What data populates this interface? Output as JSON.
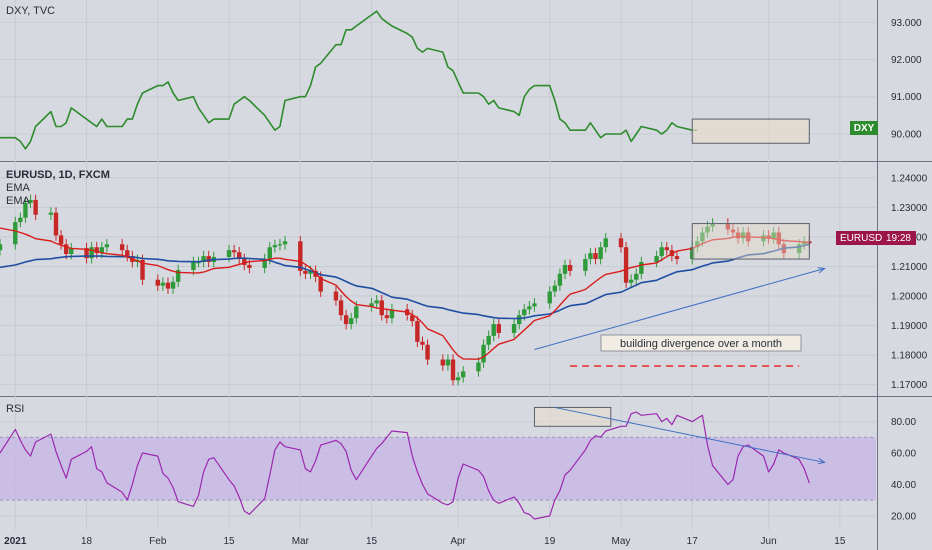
{
  "colors": {
    "background": "#d6d9df",
    "divider": "#6f7480",
    "dxy_line": "#2e8b2e",
    "candle_up": "#2f9a3a",
    "candle_down": "#c62828",
    "ema_fast": "#d91d1d",
    "ema_slow": "#1f4fa3",
    "rsi_line": "#9c27b0",
    "rsi_band": "#c7b4e6",
    "annotation_line": "#3f6fc4",
    "dashed_line": "#e53935",
    "box_fill": "#e6dccd"
  },
  "panels": {
    "dxy": {
      "title": "DXY, TVC",
      "badge": "DXY"
    },
    "eurusd": {
      "title": "EURUSD, 1D, FXCM",
      "ema_label_1": "EMA",
      "ema_label_2": "EMA",
      "badge_symbol": "EURUSD",
      "badge_time": "19:28",
      "annotation": "building divergence over a month"
    },
    "rsi": {
      "title": "RSI"
    }
  },
  "chart_data": [
    {
      "type": "line",
      "title": "DXY, TVC",
      "ylim": [
        89.3,
        93.6
      ],
      "yticks": [
        "93.000",
        "92.000",
        "91.000",
        "90.000"
      ],
      "ytick_values": [
        93.0,
        92.0,
        91.0,
        90.0
      ],
      "x_start": "2021-01-01",
      "series": [
        {
          "name": "DXY",
          "values": [
            89.9,
            89.9,
            89.8,
            89.6,
            89.8,
            90.2,
            90.6,
            90.2,
            90.2,
            90.3,
            90.7,
            90.4,
            90.3,
            90.2,
            90.4,
            90.2,
            90.2,
            90.4,
            90.4,
            90.8,
            91.1,
            91.3,
            91.3,
            91.4,
            91.1,
            90.9,
            91.0,
            90.7,
            90.5,
            90.3,
            90.4,
            90.4,
            90.8,
            90.9,
            91.0,
            90.9,
            90.5,
            90.3,
            90.1,
            90.2,
            90.9,
            91.0,
            91.0,
            91.3,
            91.8,
            91.9,
            92.4,
            92.4,
            92.8,
            92.8,
            92.9,
            93.2,
            93.3,
            93.1,
            93.0,
            92.9,
            92.7,
            92.6,
            92.3,
            92.2,
            92.3,
            92.2,
            91.8,
            91.7,
            91.4,
            91.1,
            91.1,
            91.0,
            90.8,
            90.9,
            90.7,
            90.6,
            90.5,
            91.0,
            91.2,
            91.3,
            91.3,
            90.9,
            90.4,
            90.3,
            90.1,
            90.1,
            90.3,
            90.1,
            89.9,
            90.0,
            90.0,
            90.1,
            89.8,
            90.0,
            90.2,
            90.1,
            90.0,
            90.1,
            90.3,
            90.2,
            90.1,
            90.1
          ]
        }
      ],
      "x_ticks": [
        "2021",
        "18",
        "Feb",
        "15",
        "Mar",
        "15",
        "Apr",
        "19",
        "May",
        "17",
        "Jun",
        "15"
      ]
    },
    {
      "type": "candlestick",
      "title": "EURUSD, 1D, FXCM",
      "ylim": [
        1.1665,
        1.245
      ],
      "yticks": [
        "1.24000",
        "1.23000",
        "1.22000",
        "1.21000",
        "1.20000",
        "1.19000",
        "1.18000",
        "1.17000"
      ],
      "ytick_values": [
        1.24,
        1.23,
        1.22,
        1.21,
        1.2,
        1.19,
        1.18,
        1.17
      ],
      "last_price": 1.2178,
      "x_start": "2021-01-01",
      "closes": [
        1.2175,
        1.225,
        1.2265,
        1.2315,
        1.2325,
        1.2275,
        1.2282,
        1.2205,
        1.2175,
        1.2142,
        1.2162,
        1.2128,
        1.2165,
        1.2145,
        1.2165,
        1.2175,
        1.2155,
        1.2135,
        1.2115,
        1.2122,
        1.2055,
        1.2035,
        1.2045,
        1.2025,
        1.2048,
        1.2088,
        1.2115,
        1.2115,
        1.2135,
        1.2115,
        1.2132,
        1.2155,
        1.2148,
        1.2125,
        1.2105,
        1.2095,
        1.2125,
        1.2165,
        1.2172,
        1.2175,
        1.2185,
        1.2085,
        1.2075,
        1.2085,
        1.2065,
        1.2015,
        1.1985,
        1.1935,
        1.1905,
        1.1925,
        1.1965,
        1.1975,
        1.1985,
        1.1935,
        1.1925,
        1.1955,
        1.1935,
        1.1915,
        1.1845,
        1.1835,
        1.1785,
        1.1765,
        1.1785,
        1.1715,
        1.1725,
        1.1745,
        1.1775,
        1.1835,
        1.1865,
        1.1905,
        1.1875,
        1.1905,
        1.1935,
        1.1955,
        1.1965,
        1.1975,
        1.2015,
        1.2035,
        1.2075,
        1.2105,
        1.2085,
        1.2125,
        1.2145,
        1.2125,
        1.2165,
        1.2195,
        1.2165,
        1.2045,
        1.2055,
        1.2075,
        1.2115,
        1.2135,
        1.2165,
        1.2155,
        1.2135,
        1.2125,
        1.2165,
        1.2185,
        1.2215,
        1.2235,
        1.2245,
        1.2225,
        1.2215,
        1.2195,
        1.2215,
        1.2185,
        1.2205,
        1.2195,
        1.2215,
        1.2175,
        1.2145,
        1.2175,
        1.2185,
        1.2178
      ],
      "series": [
        {
          "name": "EMA",
          "values": [
            1.223,
            1.222,
            1.2215,
            1.2209,
            1.2202,
            1.2194,
            1.2186,
            1.2178,
            1.2172,
            1.2166,
            1.2161,
            1.2158,
            1.2155,
            1.2151,
            1.2146,
            1.2143,
            1.2138,
            1.2132,
            1.2126,
            1.2119,
            1.2111,
            1.2103,
            1.2096,
            1.2089,
            1.2084,
            1.208,
            1.2078,
            1.2078,
            1.2081,
            1.2087,
            1.2093,
            1.2097,
            1.2102,
            1.2107,
            1.2112,
            1.2116,
            1.212,
            1.2124,
            1.2128,
            1.2128,
            1.2124,
            1.2117,
            1.2107,
            1.2095,
            1.2078,
            1.2059,
            1.2037,
            1.2017,
            1.1998,
            1.1983,
            1.1971,
            1.1964,
            1.1959,
            1.1957,
            1.1955,
            1.1952,
            1.1946,
            1.1937,
            1.1925,
            1.1909,
            1.1889,
            1.1866,
            1.1842,
            1.1818,
            1.1798,
            1.1787,
            1.1786,
            1.1794,
            1.1807,
            1.1823,
            1.1837,
            1.1853,
            1.1869,
            1.1885,
            1.1901,
            1.1917,
            1.1933,
            1.195,
            1.1969,
            1.1988,
            1.2006,
            1.2022,
            1.2036,
            1.2049,
            1.2062,
            1.2073,
            1.2084,
            1.2091,
            1.2096,
            1.21,
            1.2105,
            1.2112,
            1.2122,
            1.2133,
            1.2143,
            1.2152,
            1.2161,
            1.2169,
            1.2177,
            1.2184,
            1.219,
            1.2195,
            1.2199,
            1.2201,
            1.2201,
            1.22,
            1.2198,
            1.2196,
            1.2194,
            1.2191,
            1.2187,
            1.2184,
            1.2182,
            1.2181
          ]
        },
        {
          "name": "EMA",
          "values": [
            1.2097,
            1.2105,
            1.211,
            1.2115,
            1.2119,
            1.2123,
            1.2126,
            1.2129,
            1.2131,
            1.2133,
            1.2134,
            1.2135,
            1.2135,
            1.2135,
            1.2135,
            1.2134,
            1.2133,
            1.2133,
            1.2132,
            1.213,
            1.2127,
            1.2124,
            1.2122,
            1.2119,
            1.2118,
            1.2117,
            1.2116,
            1.2116,
            1.2118,
            1.2121,
            1.2123,
            1.2125,
            1.2127,
            1.2128,
            1.2128,
            1.2127,
            1.2124,
            1.212,
            1.2114,
            1.2109,
            1.2103,
            1.2097,
            1.2091,
            1.2085,
            1.2079,
            1.2072,
            1.2064,
            1.2057,
            1.2049,
            1.2041,
            1.2034,
            1.2026,
            1.2019,
            1.2011,
            1.2004,
            1.1996,
            1.1989,
            1.1983,
            1.1977,
            1.1971,
            1.1965,
            1.1959,
            1.1954,
            1.195,
            1.1946,
            1.1942,
            1.1937,
            1.1933,
            1.193,
            1.1927,
            1.1925,
            1.1924,
            1.1924,
            1.1926,
            1.1929,
            1.1933,
            1.1939,
            1.1945,
            1.1952,
            1.196,
            1.1967,
            1.1974,
            1.1981,
            1.1989,
            1.1997,
            1.2005,
            1.2013,
            1.2021,
            1.2029,
            1.2037,
            1.2045,
            1.2053,
            1.2061,
            1.2068,
            1.2075,
            1.2082,
            1.2089,
            1.2095,
            1.2101,
            1.2106,
            1.2112,
            1.2118,
            1.2123,
            1.2129,
            1.2134,
            1.2139,
            1.2143,
            1.2148,
            1.2152,
            1.2157,
            1.2162,
            1.2166,
            1.2171,
            1.2175
          ]
        }
      ],
      "x_ticks": [
        "2021",
        "18",
        "Feb",
        "15",
        "Mar",
        "15",
        "Apr",
        "19",
        "May",
        "17",
        "Jun",
        "15"
      ]
    },
    {
      "type": "line",
      "title": "RSI",
      "ylim": [
        11,
        95
      ],
      "yticks": [
        "80.00",
        "60.00",
        "40.00",
        "20.00"
      ],
      "ytick_values": [
        80,
        60,
        40,
        20
      ],
      "band": [
        30,
        70
      ],
      "x_start": "2021-01-01",
      "series": [
        {
          "name": "RSI",
          "values": [
            60,
            75,
            68,
            62,
            58,
            67,
            72,
            61,
            52,
            44,
            56,
            61,
            64,
            50,
            48,
            41,
            35,
            30,
            40,
            52,
            60,
            58,
            47,
            44,
            38,
            29,
            26,
            33,
            48,
            56,
            57,
            43,
            39,
            32,
            23,
            21,
            31,
            46,
            62,
            67,
            64,
            62,
            50,
            48,
            55,
            65,
            68,
            66,
            61,
            49,
            43,
            58,
            63,
            66,
            70,
            74,
            73,
            58,
            48,
            40,
            34,
            28,
            27,
            29,
            44,
            53,
            49,
            45,
            36,
            30,
            28,
            32,
            28,
            22,
            21,
            18,
            20,
            30,
            36,
            46,
            49,
            62,
            68,
            71,
            70,
            74,
            77,
            77,
            85,
            86,
            84,
            85,
            80,
            82,
            78,
            84,
            80,
            82,
            84,
            65,
            52,
            40,
            43,
            58,
            64,
            65,
            58,
            48,
            53,
            62,
            60,
            56,
            50,
            41
          ]
        }
      ],
      "x_ticks": [
        "2021",
        "18",
        "Feb",
        "15",
        "Mar",
        "15",
        "Apr",
        "19",
        "May",
        "17",
        "Jun",
        "15"
      ]
    }
  ]
}
